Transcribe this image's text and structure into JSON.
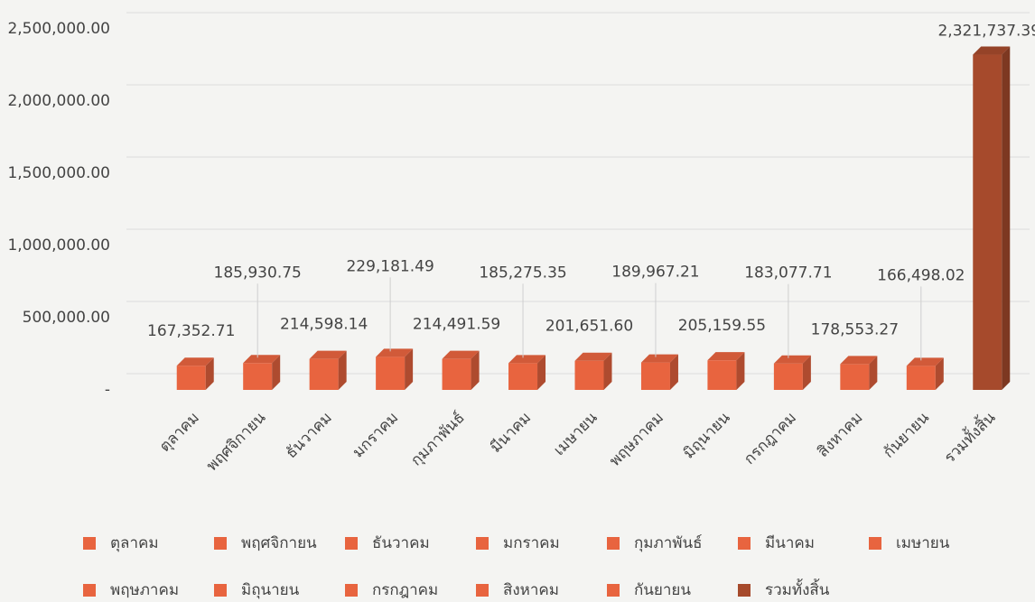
{
  "chart_data": {
    "type": "bar",
    "categories": [
      "ตุลาคม",
      "พฤศจิกายน",
      "ธันวาคม",
      "มกราคม",
      "กุมภาพันธ์",
      "มีนาคม",
      "เมษายน",
      "พฤษภาคม",
      "มิถุนายน",
      "กรกฎาคม",
      "สิงหาคม",
      "กันยายน",
      "รวมทั้งสิ้น"
    ],
    "values": [
      167352.71,
      185930.75,
      214598.14,
      229181.49,
      214491.59,
      185275.35,
      201651.6,
      189967.21,
      205159.55,
      183077.71,
      178553.27,
      166498.02,
      2321737.39
    ],
    "value_labels": [
      "167,352.71",
      "185,930.75",
      "214,598.14",
      "229,181.49",
      "214,491.59",
      "185,275.35",
      "201,651.60",
      "189,967.21",
      "205,159.55",
      "183,077.71",
      "178,553.27",
      "166,498.02",
      "2,321,737.39"
    ],
    "colors": [
      "#e8643f",
      "#e8643f",
      "#e8643f",
      "#e8643f",
      "#e8643f",
      "#e8643f",
      "#e8643f",
      "#e8643f",
      "#e8643f",
      "#e8643f",
      "#e8643f",
      "#e8643f",
      "#a64a2c"
    ],
    "ylim": [
      0,
      2500000
    ],
    "yticks": [
      {
        "value": 0,
        "label": "-"
      },
      {
        "value": 500000,
        "label": "500,000.00"
      },
      {
        "value": 1000000,
        "label": "1,000,000.00"
      },
      {
        "value": 1500000,
        "label": "1,500,000.00"
      },
      {
        "value": 2000000,
        "label": "2,000,000.00"
      },
      {
        "value": 2500000,
        "label": "2,500,000.00"
      }
    ],
    "grid": true,
    "legend": "bottom"
  }
}
